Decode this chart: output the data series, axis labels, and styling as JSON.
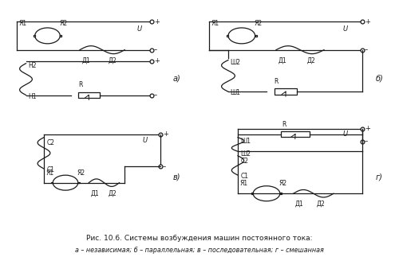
{
  "title": "Рис. 10.6. Системы возбуждения машин постоянного тока:",
  "subtitle": "а – независимая; б – параллельная; в – последовательная; г – смешанная",
  "bg_color": "#ffffff",
  "line_color": "#1a1a1a",
  "label_a": "а)",
  "label_b": "б)",
  "label_c": "в)",
  "label_d": "г)"
}
